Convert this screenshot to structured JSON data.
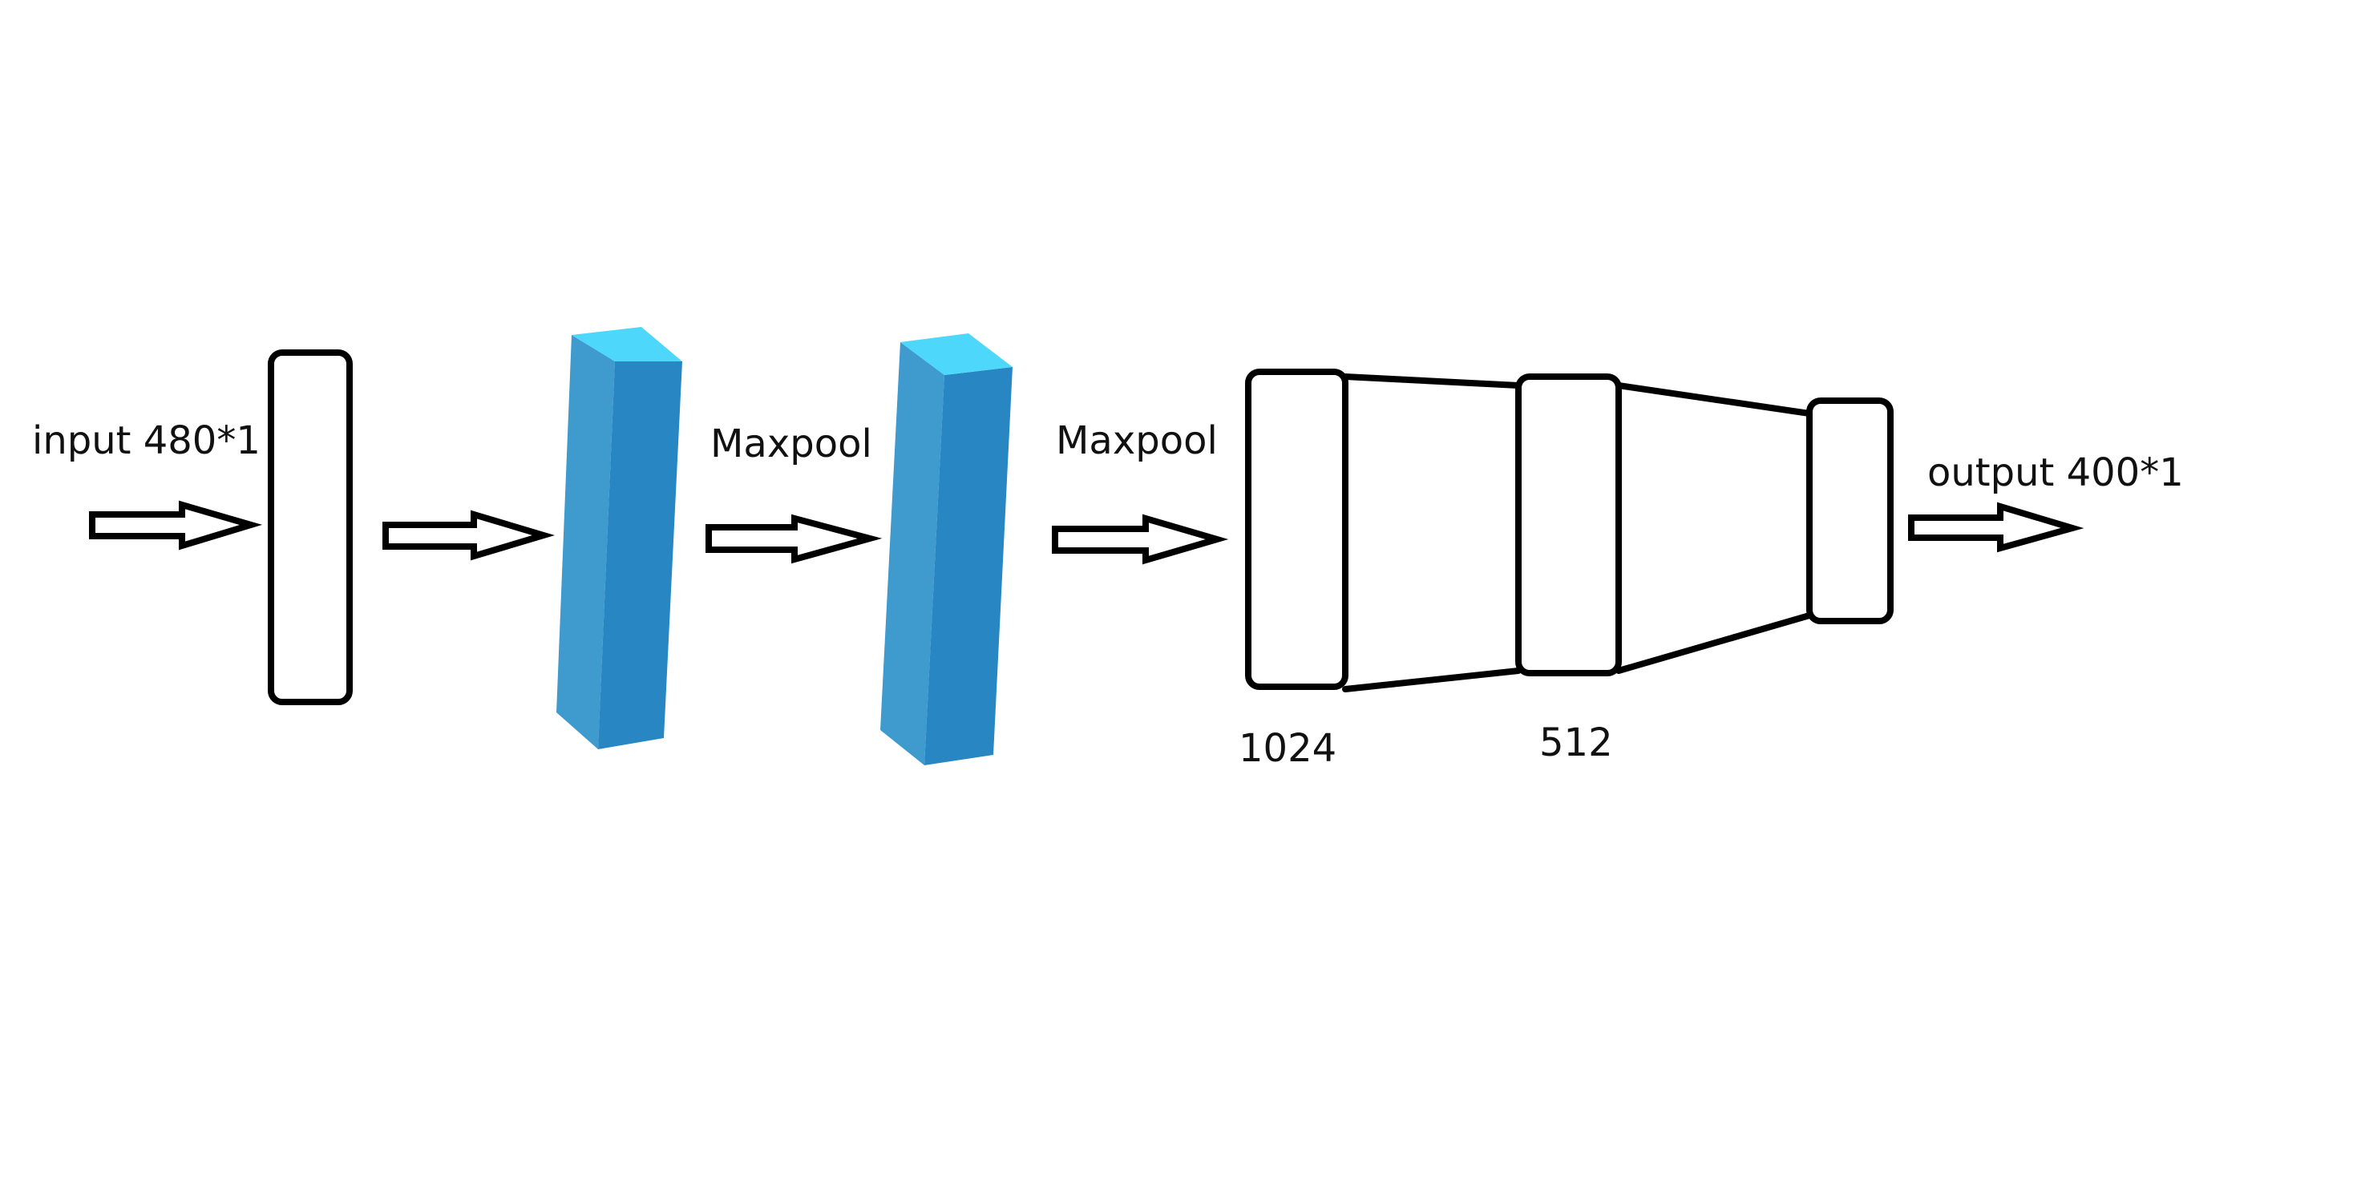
{
  "labels": {
    "input": "input 480*1",
    "maxpool_1": "Maxpool",
    "maxpool_2": "Maxpool",
    "dense_1": "1024",
    "dense_2": "512",
    "output": "output 400*1"
  },
  "colors": {
    "stroke": "#000000",
    "conv_top": "#4dd8fb",
    "conv_left": "#3f9ace",
    "conv_front": "#2887c2"
  }
}
